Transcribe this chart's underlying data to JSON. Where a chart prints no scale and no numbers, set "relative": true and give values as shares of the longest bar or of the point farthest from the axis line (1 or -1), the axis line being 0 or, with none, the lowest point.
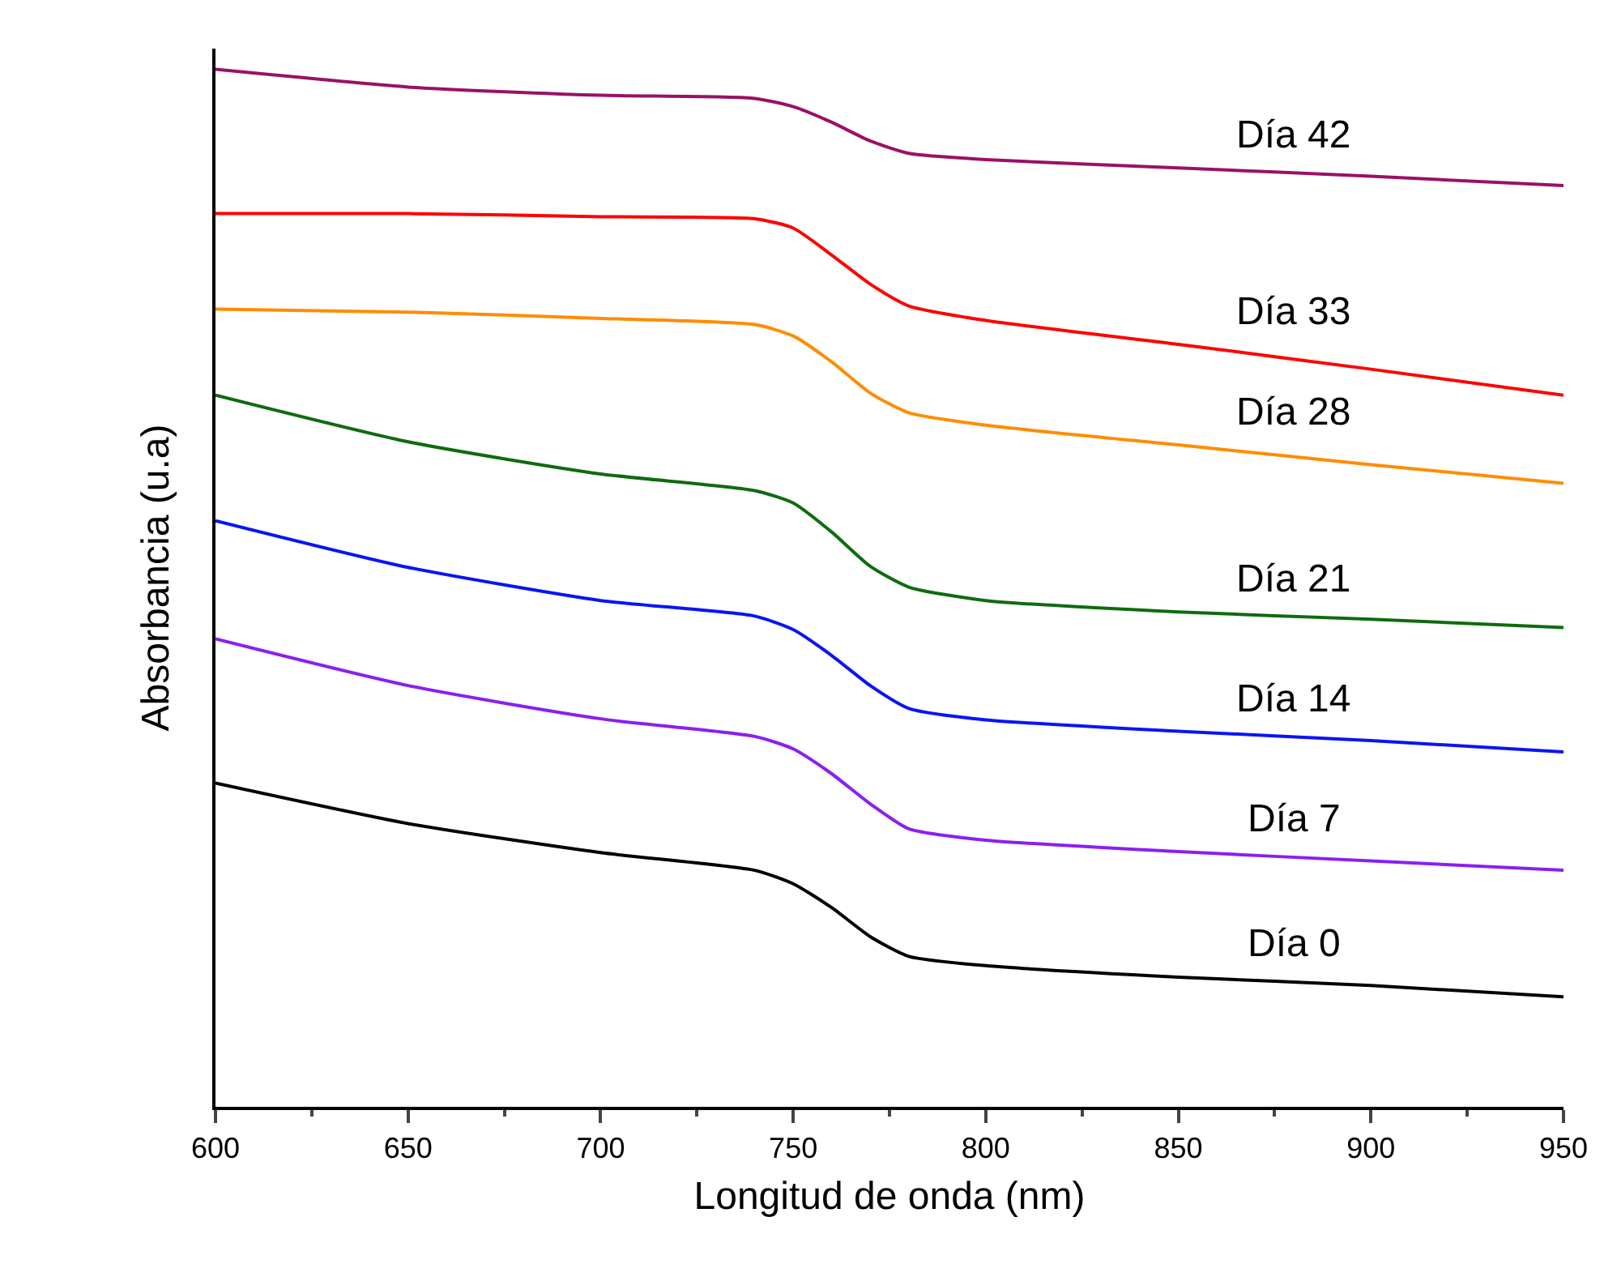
{
  "chart_data": {
    "type": "line",
    "xlabel": "Longitud de onda (nm)",
    "ylabel": "Absorbancia (u.a)",
    "relative": true,
    "xlim": [
      600,
      950
    ],
    "xticks": [
      600,
      650,
      700,
      750,
      800,
      850,
      900,
      950
    ],
    "grid": false,
    "legend": false,
    "marker": "none",
    "line_style": "solid",
    "x": [
      600,
      650,
      700,
      740,
      750,
      760,
      770,
      780,
      800,
      850,
      900,
      950
    ],
    "series": [
      {
        "name": "Día 0",
        "color": "#000000",
        "values": [
          0.312,
          0.273,
          0.245,
          0.228,
          0.215,
          0.192,
          0.164,
          0.145,
          0.136,
          0.125,
          0.117,
          0.106
        ]
      },
      {
        "name": "Día 7",
        "color": "#8b1ff0",
        "values": [
          0.451,
          0.406,
          0.374,
          0.357,
          0.345,
          0.321,
          0.292,
          0.268,
          0.257,
          0.246,
          0.237,
          0.228
        ]
      },
      {
        "name": "Día 14",
        "color": "#0a14f5",
        "values": [
          0.565,
          0.52,
          0.488,
          0.473,
          0.46,
          0.435,
          0.406,
          0.384,
          0.373,
          0.362,
          0.353,
          0.342
        ]
      },
      {
        "name": "Día 21",
        "color": "#0f6b0f",
        "values": [
          0.686,
          0.641,
          0.61,
          0.594,
          0.582,
          0.554,
          0.521,
          0.501,
          0.488,
          0.477,
          0.47,
          0.462
        ]
      },
      {
        "name": "Día 28",
        "color": "#ff8c00",
        "values": [
          0.769,
          0.766,
          0.76,
          0.754,
          0.743,
          0.718,
          0.688,
          0.669,
          0.657,
          0.638,
          0.619,
          0.601
        ]
      },
      {
        "name": "Día 33",
        "color": "#ff0000",
        "values": [
          0.861,
          0.861,
          0.858,
          0.856,
          0.847,
          0.821,
          0.793,
          0.772,
          0.758,
          0.735,
          0.711,
          0.686
        ]
      },
      {
        "name": "Día 42",
        "color": "#991166",
        "values": [
          1,
          0.983,
          0.975,
          0.972,
          0.964,
          0.949,
          0.931,
          0.919,
          0.913,
          0.905,
          0.897,
          0.888
        ]
      }
    ]
  }
}
